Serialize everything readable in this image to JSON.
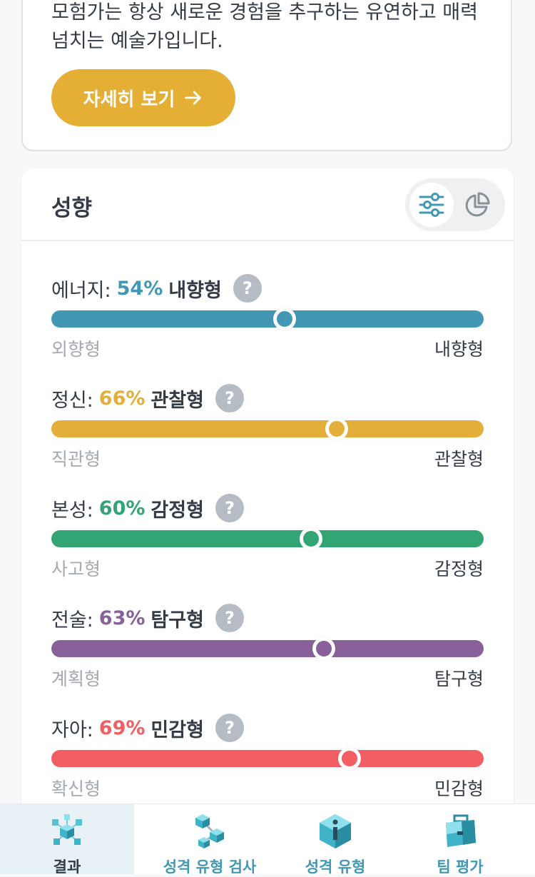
{
  "intro_card": {
    "text": "모험가는 항상 새로운 경험을 추구하는 유연하고 매력 넘치는 예술가입니다.",
    "more_button_label": "자세히 보기"
  },
  "traits_section": {
    "title": "성향",
    "view_toggle": {
      "active": "sliders-icon",
      "options": [
        "sliders-icon",
        "pie-chart-icon"
      ]
    },
    "traits": [
      {
        "name": "에너지:",
        "percent": 54,
        "percent_label": "54%",
        "type": "내향형",
        "left_label": "외향형",
        "right_label": "내향형",
        "color": "#4298b4"
      },
      {
        "name": "정신:",
        "percent": 66,
        "percent_label": "66%",
        "type": "관찰형",
        "left_label": "직관형",
        "right_label": "관찰형",
        "color": "#e4ae3a"
      },
      {
        "name": "본성:",
        "percent": 60,
        "percent_label": "60%",
        "type": "감정형",
        "left_label": "사고형",
        "right_label": "감정형",
        "color": "#33a474"
      },
      {
        "name": "전술:",
        "percent": 63,
        "percent_label": "63%",
        "type": "탐구형",
        "left_label": "계획형",
        "right_label": "탐구형",
        "color": "#88619a"
      },
      {
        "name": "자아:",
        "percent": 69,
        "percent_label": "69%",
        "type": "민감형",
        "left_label": "확신형",
        "right_label": "민감형",
        "color": "#f25e62"
      }
    ],
    "help_glyph": "?"
  },
  "bottom_nav": {
    "items": [
      {
        "label": "결과",
        "icon": "molecule-cubes-icon",
        "active": true,
        "label_color": "#333b46"
      },
      {
        "label": "성격 유형 검사",
        "icon": "connected-cubes-icon",
        "active": false,
        "label_color": "#4298b4"
      },
      {
        "label": "성격 유형",
        "icon": "info-gem-icon",
        "active": false,
        "label_color": "#4298b4"
      },
      {
        "label": "팀 평가",
        "icon": "briefcase-icon",
        "active": false,
        "label_color": "#4298b4"
      }
    ]
  }
}
